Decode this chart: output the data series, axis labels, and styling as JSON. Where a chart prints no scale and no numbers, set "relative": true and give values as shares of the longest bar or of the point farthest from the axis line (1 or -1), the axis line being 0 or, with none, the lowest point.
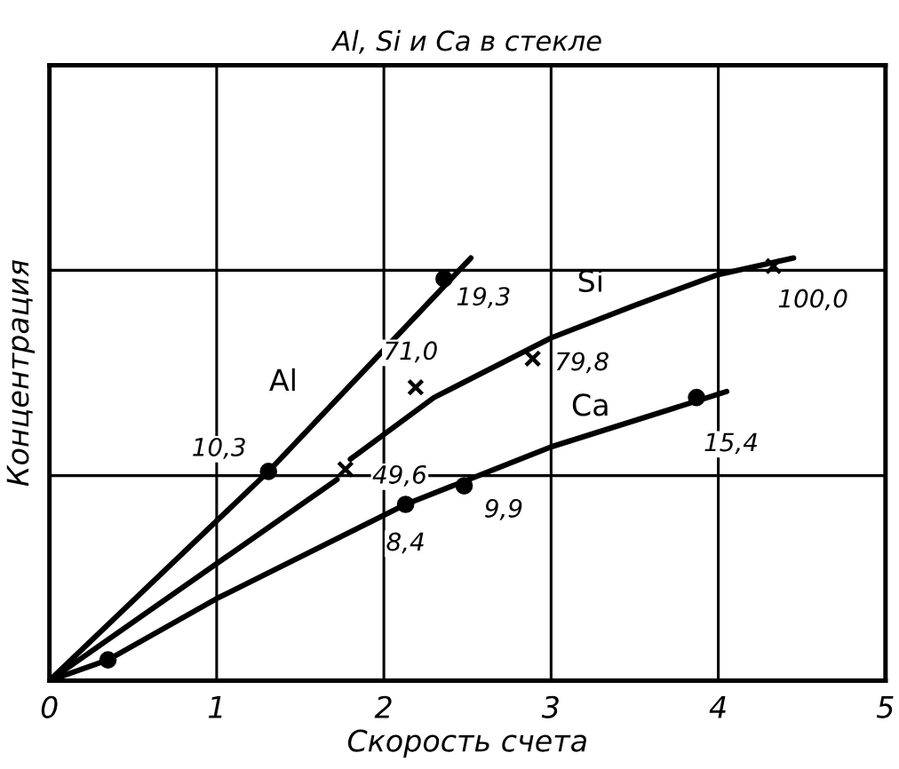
{
  "chart_data": {
    "type": "line",
    "title": "Al, Si и Ca в стекле",
    "xlabel": "Скорость счета",
    "ylabel": "Концентрация",
    "relative": true,
    "xlim": [
      0,
      5
    ],
    "xticks": [
      0,
      1,
      2,
      3,
      4,
      5
    ],
    "grid": "x",
    "series": [
      {
        "name": "Al",
        "color": "#000000",
        "x": [
          0,
          1.31,
          2.52
        ],
        "values": [
          0,
          0.495,
          1.0
        ]
      },
      {
        "type": "scatter",
        "marker": "circle",
        "color": "#000000",
        "x": [
          1.31,
          2.36
        ],
        "values": [
          0.495,
          0.951
        ]
      },
      {
        "name": "Si",
        "color": "#000000",
        "x": [
          0,
          1.72,
          1.76,
          1.8,
          2.3,
          3,
          3.5,
          4,
          4.45
        ],
        "values": [
          0,
          0.476,
          null,
          0.524,
          0.67,
          0.811,
          0.888,
          0.961,
          1.0
        ]
      },
      {
        "type": "scatter",
        "marker": "cross",
        "color": "#000000",
        "x": [
          1.77,
          2.19,
          2.89,
          4.33
        ],
        "values": [
          0.5,
          0.694,
          0.762,
          0.981
        ]
      },
      {
        "name": "Ca",
        "color": "#000000",
        "x": [
          0,
          0.35,
          1,
          2.13,
          3,
          4.05
        ],
        "values": [
          0,
          0.049,
          0.194,
          0.417,
          0.553,
          0.684
        ]
      },
      {
        "type": "scatter",
        "marker": "circle",
        "color": "#000000",
        "x": [
          0.35,
          2.13,
          2.48,
          3.87
        ],
        "values": [
          0.049,
          0.417,
          0.461,
          0.67
        ]
      }
    ],
    "ref_lines": [
      {
        "axis": "y",
        "value": 0.485,
        "color": "#000000"
      },
      {
        "axis": "y",
        "value": 0.971,
        "color": "#000000"
      }
    ],
    "annotations": [
      {
        "text": "10,3",
        "x": 1.31,
        "y": 0.495
      },
      {
        "text": "19,3",
        "x": 2.36,
        "y": 0.951
      },
      {
        "text": "49,6",
        "x": 1.77,
        "y": 0.5
      },
      {
        "text": "71,0",
        "x": 2.19,
        "y": 0.694
      },
      {
        "text": "79,8",
        "x": 2.89,
        "y": 0.762
      },
      {
        "text": "100,0",
        "x": 4.33,
        "y": 0.981
      },
      {
        "text": "8,4",
        "x": 2.13,
        "y": 0.417
      },
      {
        "text": "9,9",
        "x": 2.48,
        "y": 0.461
      },
      {
        "text": "15,4",
        "x": 3.87,
        "y": 0.67
      }
    ]
  }
}
